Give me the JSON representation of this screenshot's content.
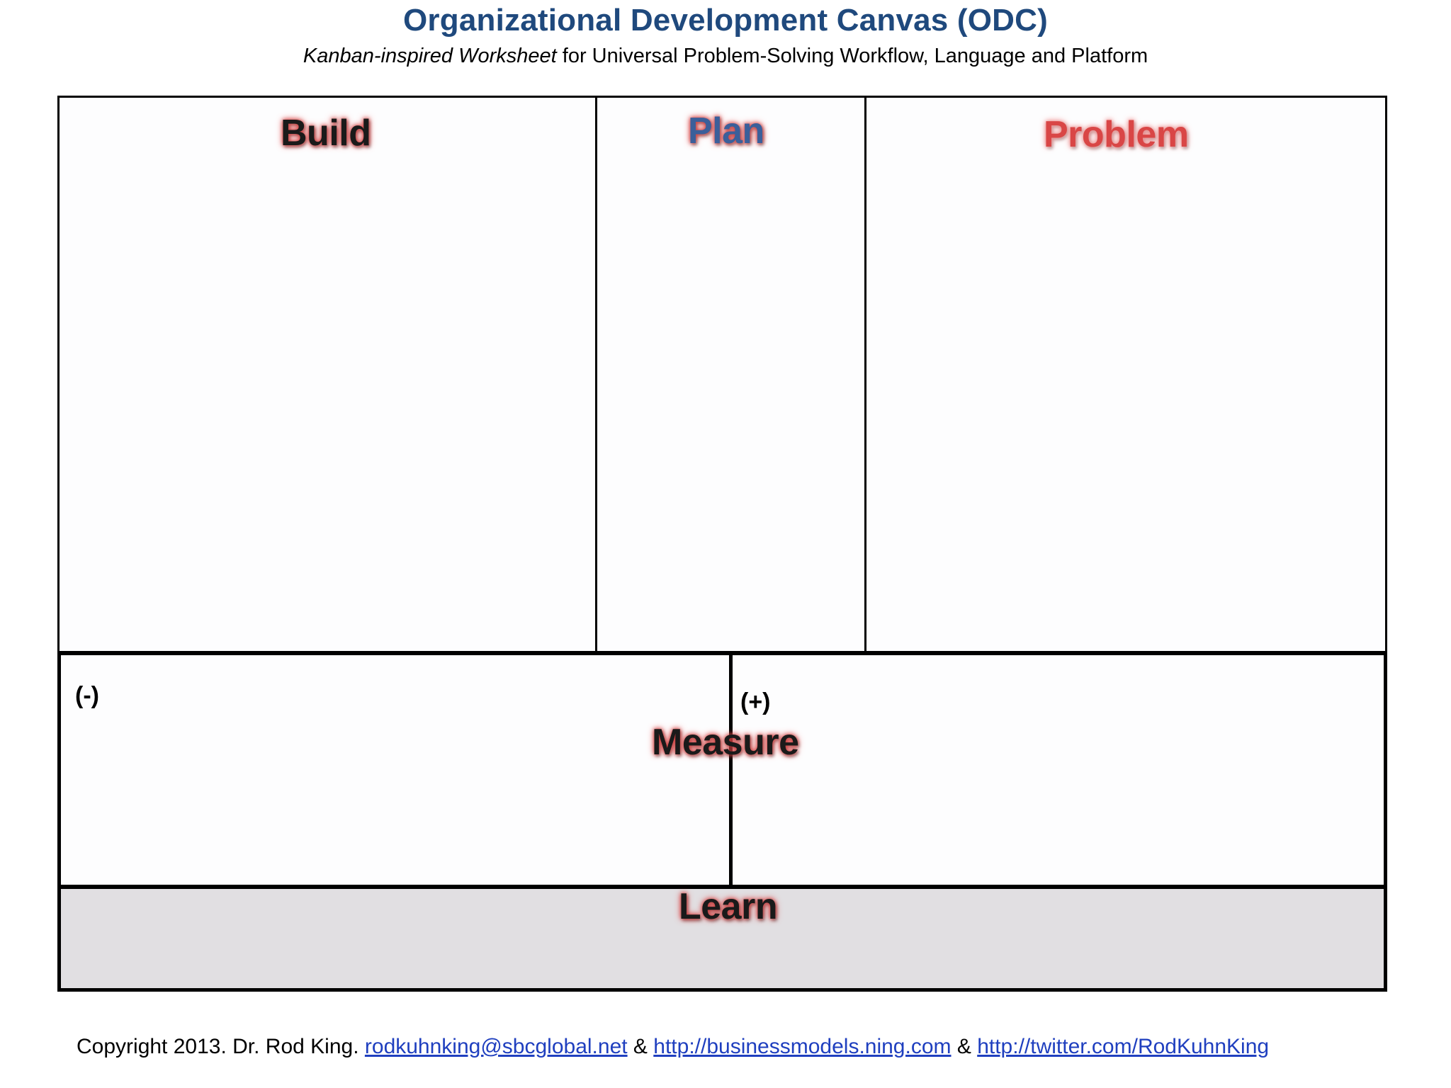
{
  "title": "Organizational Development Canvas (ODC)",
  "subtitle": {
    "italic": "Kanban-inspired Worksheet",
    "rest": " for Universal Problem-Solving Workflow, Language and Platform"
  },
  "sections": {
    "build": "Build",
    "plan": "Plan",
    "problem": "Problem",
    "measure": "Measure",
    "learn": "Learn"
  },
  "measure": {
    "negative": "(-)",
    "positive": "(+)"
  },
  "colors": {
    "title": "#1f497d",
    "learn_background": "#e1dfe2",
    "link": "#1f3fbf",
    "heading_glow": "#d23a3a"
  },
  "footer": {
    "copyright": "Copyright 2013. Dr. Rod King. ",
    "email": "rodkuhnking@sbcglobal.net",
    "sep1": " & ",
    "link1": "http://businessmodels.ning.com",
    "sep2": " & ",
    "link2": "http://twitter.com/RodKuhnKing"
  }
}
